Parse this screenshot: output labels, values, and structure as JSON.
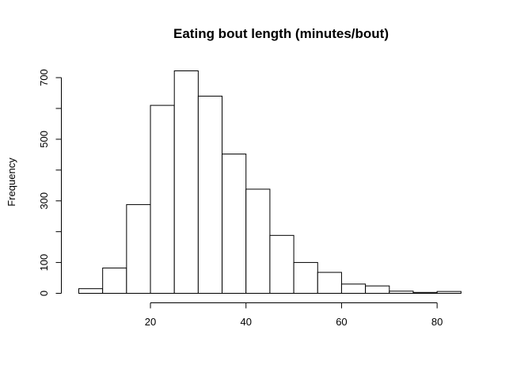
{
  "chart_data": {
    "type": "bar",
    "histogram": true,
    "title": "Eating bout length (minutes/bout)",
    "xlabel": "",
    "ylabel": "Frequency",
    "bins": [
      {
        "x0": 5,
        "x1": 10,
        "count": 15
      },
      {
        "x0": 10,
        "x1": 15,
        "count": 82
      },
      {
        "x0": 15,
        "x1": 20,
        "count": 288
      },
      {
        "x0": 20,
        "x1": 25,
        "count": 610
      },
      {
        "x0": 25,
        "x1": 30,
        "count": 722
      },
      {
        "x0": 30,
        "x1": 35,
        "count": 640
      },
      {
        "x0": 35,
        "x1": 40,
        "count": 452
      },
      {
        "x0": 40,
        "x1": 45,
        "count": 338
      },
      {
        "x0": 45,
        "x1": 50,
        "count": 188
      },
      {
        "x0": 50,
        "x1": 55,
        "count": 100
      },
      {
        "x0": 55,
        "x1": 60,
        "count": 68
      },
      {
        "x0": 60,
        "x1": 65,
        "count": 30
      },
      {
        "x0": 65,
        "x1": 70,
        "count": 24
      },
      {
        "x0": 70,
        "x1": 75,
        "count": 7
      },
      {
        "x0": 75,
        "x1": 80,
        "count": 3
      },
      {
        "x0": 80,
        "x1": 85,
        "count": 6
      },
      {
        "x0": 85,
        "x1": 90,
        "count": 0
      }
    ],
    "xlim": [
      5,
      90
    ],
    "ylim": [
      0,
      722
    ],
    "xticks": [
      20,
      40,
      60,
      80
    ],
    "yticks": [
      0,
      100,
      200,
      300,
      400,
      500,
      600,
      700
    ],
    "ytick_labels": [
      "0",
      "100",
      "",
      "300",
      "",
      "500",
      "",
      "700"
    ],
    "grid": false,
    "legend": "none"
  }
}
